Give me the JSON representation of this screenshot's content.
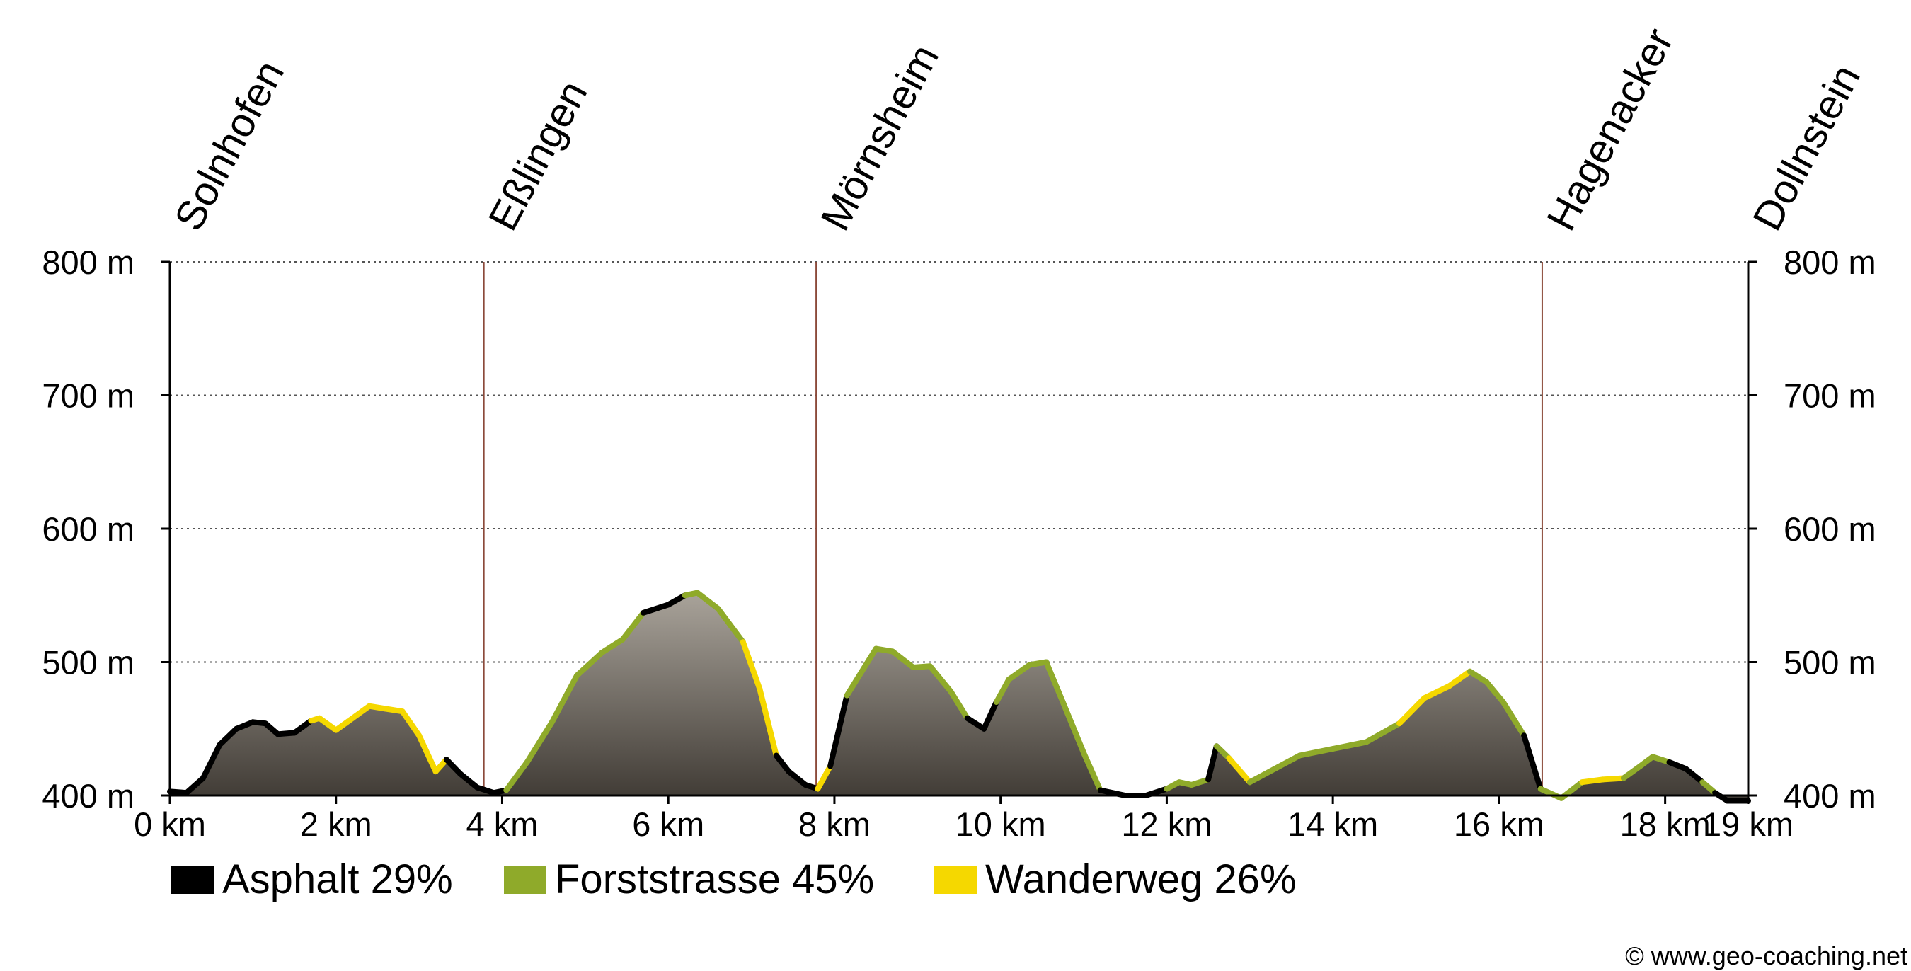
{
  "chart_data": {
    "type": "area",
    "title": "",
    "xlabel": "",
    "ylabel": "",
    "xlim": [
      0,
      19
    ],
    "ylim": [
      400,
      800
    ],
    "x_ticks": [
      0,
      2,
      4,
      6,
      8,
      10,
      12,
      14,
      16,
      18,
      19
    ],
    "x_tick_labels": [
      "0 km",
      "2 km",
      "4 km",
      "6 km",
      "8 km",
      "10 km",
      "12 km",
      "14 km",
      "16 km",
      "18 km",
      "19 km"
    ],
    "y_ticks": [
      400,
      500,
      600,
      700,
      800
    ],
    "y_tick_labels": [
      "400 m",
      "500 m",
      "600 m",
      "700 m",
      "800 m"
    ],
    "grid": {
      "horizontal": true,
      "style": "dotted"
    },
    "places": [
      {
        "name": "Solnhofen",
        "x": 0
      },
      {
        "name": "Eßlingen",
        "x": 3.78
      },
      {
        "name": "Mörnsheim",
        "x": 7.78
      },
      {
        "name": "Hagenacker",
        "x": 16.52
      },
      {
        "name": "Dollnstein",
        "x": 19
      }
    ],
    "surface_colors": {
      "asphalt": "#000000",
      "forststrasse": "#8faa2a",
      "wanderweg": "#f5d800"
    },
    "legend": [
      {
        "key": "asphalt",
        "label": "Asphalt 29%",
        "color": "#000000"
      },
      {
        "key": "forststrasse",
        "label": "Forststrasse 45%",
        "color": "#8faa2a"
      },
      {
        "key": "wanderweg",
        "label": "Wanderweg 26%",
        "color": "#f5d800"
      }
    ],
    "legend_position": "bottom-left",
    "profile": {
      "x": [
        0,
        0.2,
        0.4,
        0.6,
        0.8,
        1.0,
        1.15,
        1.3,
        1.5,
        1.7,
        1.8,
        2.0,
        2.2,
        2.4,
        2.6,
        2.8,
        3.0,
        3.2,
        3.33,
        3.5,
        3.7,
        3.9,
        4.05,
        4.3,
        4.6,
        4.9,
        5.2,
        5.45,
        5.7,
        6.0,
        6.2,
        6.35,
        6.6,
        6.9,
        7.1,
        7.3,
        7.45,
        7.65,
        7.8,
        7.95,
        8.15,
        8.35,
        8.5,
        8.7,
        8.95,
        9.15,
        9.4,
        9.6,
        9.8,
        9.95,
        10.1,
        10.35,
        10.55,
        10.75,
        11.0,
        11.2,
        11.5,
        11.75,
        12.0,
        12.15,
        12.3,
        12.5,
        12.6,
        12.75,
        13.0,
        13.3,
        13.6,
        14.0,
        14.4,
        14.8,
        15.1,
        15.4,
        15.65,
        15.85,
        16.05,
        16.3,
        16.5,
        16.75,
        17.0,
        17.25,
        17.5,
        17.7,
        17.85,
        18.05,
        18.25,
        18.45,
        18.6,
        18.75,
        19.0
      ],
      "y": [
        403,
        402,
        413,
        438,
        450,
        455,
        454,
        446,
        447,
        456,
        458,
        449,
        458,
        467,
        465,
        463,
        445,
        418,
        427,
        416,
        406,
        402,
        404,
        425,
        455,
        490,
        507,
        517,
        537,
        543,
        550,
        552,
        540,
        515,
        480,
        430,
        418,
        408,
        405,
        422,
        475,
        495,
        510,
        508,
        496,
        497,
        478,
        458,
        450,
        470,
        487,
        498,
        500,
        470,
        432,
        404,
        400,
        400,
        405,
        410,
        408,
        412,
        437,
        428,
        410,
        420,
        430,
        435,
        440,
        454,
        473,
        482,
        493,
        485,
        470,
        445,
        405,
        398,
        410,
        412,
        413,
        422,
        429,
        425,
        420,
        410,
        402,
        396,
        396
      ],
      "surface": [
        "asphalt",
        "asphalt",
        "asphalt",
        "asphalt",
        "asphalt",
        "asphalt",
        "asphalt",
        "asphalt",
        "asphalt",
        "wanderweg",
        "wanderweg",
        "wanderweg",
        "wanderweg",
        "wanderweg",
        "wanderweg",
        "wanderweg",
        "wanderweg",
        "wanderweg",
        "asphalt",
        "asphalt",
        "asphalt",
        "asphalt",
        "forststrasse",
        "forststrasse",
        "forststrasse",
        "forststrasse",
        "forststrasse",
        "forststrasse",
        "asphalt",
        "asphalt",
        "forststrasse",
        "forststrasse",
        "forststrasse",
        "wanderweg",
        "wanderweg",
        "asphalt",
        "asphalt",
        "asphalt",
        "wanderweg",
        "asphalt",
        "forststrasse",
        "forststrasse",
        "forststrasse",
        "forststrasse",
        "forststrasse",
        "forststrasse",
        "forststrasse",
        "asphalt",
        "asphalt",
        "forststrasse",
        "forststrasse",
        "forststrasse",
        "forststrasse",
        "forststrasse",
        "forststrasse",
        "asphalt",
        "asphalt",
        "asphalt",
        "forststrasse",
        "forststrasse",
        "forststrasse",
        "asphalt",
        "forststrasse",
        "wanderweg",
        "forststrasse",
        "forststrasse",
        "forststrasse",
        "forststrasse",
        "forststrasse",
        "wanderweg",
        "wanderweg",
        "wanderweg",
        "forststrasse",
        "forststrasse",
        "forststrasse",
        "asphalt",
        "forststrasse",
        "forststrasse",
        "wanderweg",
        "wanderweg",
        "forststrasse",
        "forststrasse",
        "forststrasse",
        "asphalt",
        "asphalt",
        "forststrasse",
        "asphalt",
        "asphalt"
      ]
    }
  },
  "copyright": "© www.geo-coaching.net"
}
